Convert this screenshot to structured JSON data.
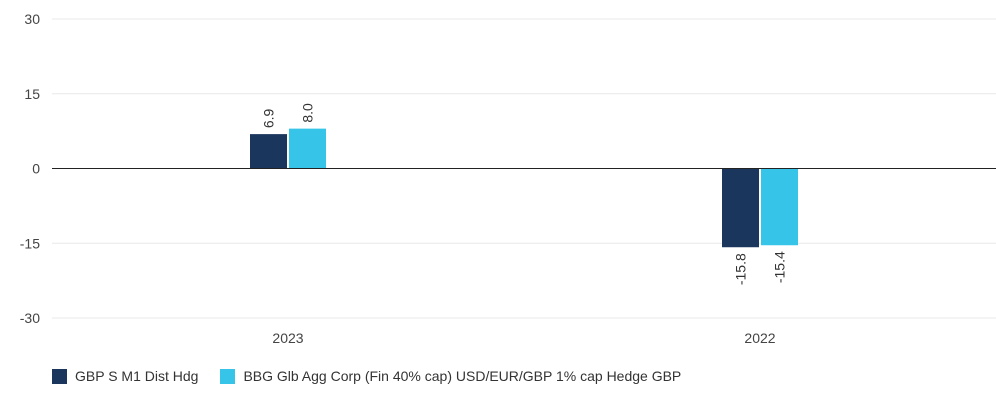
{
  "chart_data": {
    "type": "bar",
    "categories": [
      "2023",
      "2022"
    ],
    "series": [
      {
        "name": "GBP S M1 Dist Hdg",
        "color": "#1b365d",
        "values": [
          6.9,
          -15.8
        ],
        "labels": [
          "6.9",
          "-15.8"
        ]
      },
      {
        "name": "BBG Glb Agg Corp (Fin 40% cap) USD/EUR/GBP 1% cap Hedge GBP",
        "color": "#36c5e8",
        "values": [
          8.0,
          -15.4
        ],
        "labels": [
          "8.0",
          "-15.4"
        ]
      }
    ],
    "ylim": [
      -30,
      30
    ],
    "yticks": [
      "30",
      "15",
      "0",
      "-15",
      "-30"
    ],
    "ytick_values": [
      30,
      15,
      0,
      -15,
      -30
    ],
    "grid": true,
    "legend_position": "bottom-left"
  }
}
